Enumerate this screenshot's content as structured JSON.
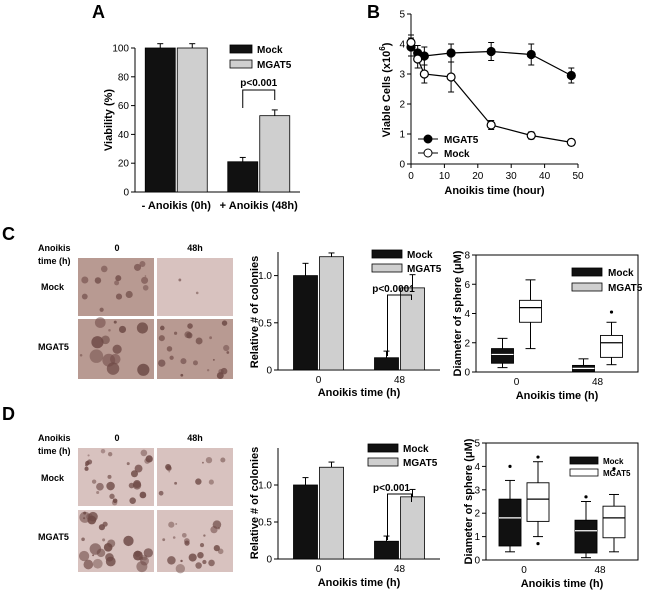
{
  "panels": {
    "A": "A",
    "B": "B",
    "C": "C",
    "D": "D"
  },
  "colors": {
    "mock": "#111111",
    "mgat5": "#cfcfcf",
    "micro_bg": "#b89a92",
    "micro_bg2": "#d8c2bf",
    "micro_cell": "#6e4a46"
  },
  "micrographs": {
    "C": {
      "header_label": [
        "Anoikis",
        "time (h)"
      ],
      "col_labels": [
        "0",
        "48h"
      ],
      "row_labels": [
        "Mock",
        "MGAT5"
      ]
    },
    "D": {
      "header_label": [
        "Anoikis",
        "time (h)"
      ],
      "col_labels": [
        "0",
        "48h"
      ],
      "row_labels": [
        "Mock",
        "MGAT5"
      ]
    }
  },
  "chart_data": [
    {
      "id": "A",
      "type": "bar",
      "categories": [
        "- Anoikis (0h)",
        "+ Anoikis (48h)"
      ],
      "series": [
        {
          "name": "Mock",
          "values": [
            100,
            21
          ],
          "errors": [
            3,
            3
          ]
        },
        {
          "name": "MGAT5",
          "values": [
            100,
            53
          ],
          "errors": [
            3,
            4
          ]
        }
      ],
      "ylabel": "Viability (%)",
      "ylim": [
        0,
        100
      ],
      "yticks": [
        "0",
        "20",
        "40",
        "60",
        "80",
        "100"
      ],
      "annotation": "p<0.001",
      "legend_position": "top-right"
    },
    {
      "id": "B",
      "type": "line",
      "x": [
        0,
        2,
        4,
        12,
        24,
        36,
        48
      ],
      "series": [
        {
          "name": "MGAT5",
          "values": [
            3.9,
            3.7,
            3.6,
            3.7,
            3.75,
            3.65,
            2.95
          ],
          "errors": [
            0.3,
            0.25,
            0.3,
            0.3,
            0.3,
            0.35,
            0.25
          ]
        },
        {
          "name": "Mock",
          "values": [
            4.05,
            3.5,
            3.0,
            2.9,
            1.3,
            0.95,
            0.72
          ],
          "errors": [
            0.25,
            0.3,
            0.3,
            0.5,
            0.15,
            0.12,
            0.1
          ]
        }
      ],
      "xlabel": "Anoikis time (hour)",
      "ylabel": "Viable Cells (x10",
      "ylabel_sup": "6",
      "ylabel_end": ")",
      "xlim": [
        0,
        50
      ],
      "ylim": [
        0,
        5
      ],
      "xticks": [
        "0",
        "10",
        "20",
        "30",
        "40",
        "50"
      ],
      "yticks": [
        "0",
        "1",
        "2",
        "3",
        "4",
        "5"
      ],
      "legend_position": "bottom-left"
    },
    {
      "id": "C-bar",
      "type": "bar",
      "categories": [
        "0",
        "48"
      ],
      "series": [
        {
          "name": "Mock",
          "values": [
            1.0,
            0.13
          ],
          "errors": [
            0.13,
            0.07
          ]
        },
        {
          "name": "MGAT5",
          "values": [
            1.2,
            0.87
          ],
          "errors": [
            0.04,
            0.14
          ]
        }
      ],
      "xlabel": "Anoikis time (h)",
      "ylabel": "Relative # of colonies",
      "ylim": [
        0,
        1.25
      ],
      "yticks": [
        "0",
        "0.5",
        "1.0"
      ],
      "annotation": "p<0.0001",
      "legend_position": "top-right"
    },
    {
      "id": "C-box",
      "type": "box",
      "categories": [
        "0",
        "48"
      ],
      "series": [
        {
          "name": "Mock",
          "boxes": [
            {
              "min": 0.3,
              "q1": 0.6,
              "median": 1.2,
              "q3": 1.6,
              "max": 2.3,
              "outliers": []
            },
            {
              "min": 0.0,
              "q1": 0.05,
              "median": 0.25,
              "q3": 0.45,
              "max": 0.9,
              "outliers": []
            }
          ]
        },
        {
          "name": "MGAT5",
          "boxes": [
            {
              "min": 1.6,
              "q1": 3.4,
              "median": 4.4,
              "q3": 4.9,
              "max": 6.3,
              "outliers": []
            },
            {
              "min": 0.5,
              "q1": 1.0,
              "median": 2.0,
              "q3": 2.5,
              "max": 3.4,
              "outliers": [
                4.1
              ]
            }
          ]
        }
      ],
      "xlabel": "Anoikis time (h)",
      "ylabel": "Diameter of sphere (μM)",
      "ylim": [
        0,
        8
      ],
      "yticks": [
        "0",
        "2",
        "4",
        "6",
        "8"
      ],
      "legend_position": "top-right"
    },
    {
      "id": "D-bar",
      "type": "bar",
      "categories": [
        "0",
        "48"
      ],
      "series": [
        {
          "name": "Mock",
          "values": [
            1.0,
            0.24
          ],
          "errors": [
            0.1,
            0.07
          ]
        },
        {
          "name": "MGAT5",
          "values": [
            1.24,
            0.84
          ],
          "errors": [
            0.07,
            0.1
          ]
        }
      ],
      "xlabel": "Anoikis time (h)",
      "ylabel": "Relative # of colonies",
      "ylim": [
        0,
        1.5
      ],
      "yticks": [
        "0",
        "0.5",
        "1.0"
      ],
      "annotation": "p<0.001",
      "legend_position": "top-right"
    },
    {
      "id": "D-box",
      "type": "box",
      "categories": [
        "0",
        "48"
      ],
      "series": [
        {
          "name": "Mock",
          "boxes": [
            {
              "min": 0.35,
              "q1": 0.6,
              "median": 1.8,
              "q3": 2.6,
              "max": 3.4,
              "outliers": [
                4.0
              ]
            },
            {
              "min": 0.1,
              "q1": 0.3,
              "median": 1.25,
              "q3": 1.7,
              "max": 2.5,
              "outliers": [
                2.7
              ]
            }
          ]
        },
        {
          "name": "MGAT5",
          "boxes": [
            {
              "min": 1.0,
              "q1": 1.65,
              "median": 2.6,
              "q3": 3.3,
              "max": 4.2,
              "outliers": [
                4.4,
                0.7
              ]
            },
            {
              "min": 0.35,
              "q1": 0.95,
              "median": 1.8,
              "q3": 2.3,
              "max": 2.8,
              "outliers": [
                3.9
              ]
            }
          ]
        }
      ],
      "xlabel": "Anoikis time (h)",
      "ylabel": "Diameter of sphere (μM)",
      "ylim": [
        0,
        5
      ],
      "yticks": [
        "0",
        "1",
        "2",
        "3",
        "4",
        "5"
      ],
      "legend_position": "top-right"
    }
  ]
}
